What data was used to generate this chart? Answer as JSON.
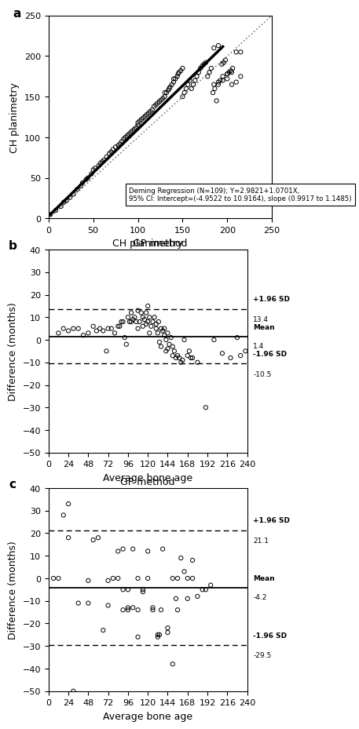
{
  "panel_a": {
    "xlabel": "GP method",
    "ylabel": "CH planimetry",
    "xlim": [
      0,
      250
    ],
    "ylim": [
      0,
      250
    ],
    "xticks": [
      0,
      50,
      100,
      150,
      200,
      250
    ],
    "yticks": [
      0,
      50,
      100,
      150,
      200,
      250
    ],
    "regression_intercept": 2.9821,
    "regression_slope": 1.0701,
    "annotation": "Deming Regression (N=109); Y=2.9821+1.0701X,\n95% CI: Intercept=(-4.9522 to 10.9164), slope (0.9917 to 1.1485)",
    "scatter_x": [
      2,
      8,
      14,
      17,
      20,
      24,
      28,
      32,
      36,
      38,
      42,
      44,
      48,
      50,
      52,
      56,
      58,
      60,
      62,
      65,
      68,
      70,
      72,
      75,
      78,
      80,
      82,
      84,
      86,
      88,
      90,
      92,
      94,
      96,
      98,
      100,
      100,
      102,
      104,
      106,
      108,
      110,
      112,
      114,
      116,
      118,
      120,
      122,
      124,
      126,
      128,
      130,
      130,
      132,
      134,
      135,
      136,
      138,
      140,
      140,
      142,
      144,
      145,
      146,
      148,
      150,
      150,
      152,
      154,
      156,
      158,
      160,
      162,
      164,
      166,
      168,
      170,
      172,
      174,
      176,
      178,
      180,
      182,
      184,
      186,
      188,
      190,
      192,
      194,
      196,
      198,
      200,
      202,
      204,
      206,
      185,
      190,
      195,
      200,
      205,
      210,
      215,
      185,
      190,
      195,
      200,
      205,
      210,
      215
    ],
    "scatter_y": [
      5,
      10,
      15,
      20,
      22,
      26,
      30,
      36,
      40,
      44,
      48,
      50,
      55,
      60,
      62,
      65,
      68,
      70,
      72,
      76,
      80,
      82,
      85,
      88,
      90,
      92,
      95,
      98,
      100,
      102,
      104,
      106,
      108,
      110,
      112,
      115,
      118,
      120,
      122,
      124,
      126,
      128,
      130,
      132,
      134,
      138,
      140,
      142,
      144,
      146,
      148,
      150,
      155,
      155,
      158,
      160,
      162,
      165,
      168,
      172,
      172,
      175,
      178,
      180,
      182,
      185,
      150,
      155,
      160,
      165,
      170,
      160,
      165,
      170,
      175,
      180,
      185,
      188,
      190,
      192,
      175,
      180,
      185,
      155,
      160,
      145,
      165,
      170,
      190,
      192,
      195,
      178,
      180,
      182,
      185,
      210,
      213,
      175,
      178,
      180,
      205,
      175,
      165,
      168,
      170,
      172,
      165,
      168,
      205
    ]
  },
  "panel_b": {
    "title": "CH planimetry",
    "xlabel": "Average bone age",
    "ylabel": "Difference (months)",
    "xlim": [
      0,
      240
    ],
    "ylim": [
      -50,
      40
    ],
    "xticks": [
      0,
      24,
      48,
      72,
      96,
      120,
      144,
      168,
      192,
      216,
      240
    ],
    "yticks": [
      -50,
      -40,
      -30,
      -20,
      -10,
      0,
      10,
      20,
      30,
      40
    ],
    "mean": 1.4,
    "upper_sd": 13.4,
    "lower_sd": -10.5,
    "scatter_x": [
      12,
      18,
      24,
      30,
      36,
      42,
      48,
      54,
      58,
      62,
      66,
      70,
      72,
      76,
      80,
      84,
      86,
      88,
      90,
      92,
      94,
      96,
      98,
      100,
      100,
      102,
      104,
      106,
      108,
      108,
      110,
      112,
      114,
      114,
      116,
      118,
      118,
      120,
      120,
      122,
      122,
      124,
      126,
      128,
      130,
      130,
      132,
      133,
      134,
      136,
      136,
      138,
      140,
      140,
      142,
      142,
      144,
      144,
      146,
      148,
      150,
      150,
      152,
      154,
      156,
      158,
      160,
      162,
      164,
      168,
      170,
      172,
      174,
      180,
      190,
      200,
      210,
      220,
      228,
      232,
      238
    ],
    "scatter_y": [
      3,
      5,
      4,
      5,
      5,
      2,
      3,
      6,
      4,
      5,
      4,
      -5,
      5,
      5,
      3,
      6,
      6,
      8,
      8,
      1,
      -2,
      10,
      8,
      8,
      12,
      9,
      10,
      8,
      13,
      5,
      8,
      12,
      10,
      6,
      9,
      7,
      12,
      15,
      8,
      10,
      3,
      6,
      8,
      10,
      5,
      7,
      3,
      8,
      -1,
      5,
      -3,
      4,
      5,
      2,
      0,
      -5,
      3,
      -4,
      -2,
      1,
      -3,
      -7,
      -5,
      -8,
      -7,
      -8,
      -10,
      -9,
      0,
      -7,
      -5,
      -8,
      -8,
      -10,
      -30,
      0,
      -6,
      -8,
      1,
      -7,
      -5
    ]
  },
  "panel_c": {
    "title": "GP method",
    "xlabel": "Average bone age",
    "ylabel": "Difference (months)",
    "xlim": [
      0,
      240
    ],
    "ylim": [
      -50,
      40
    ],
    "xticks": [
      0,
      24,
      48,
      72,
      96,
      120,
      144,
      168,
      192,
      216,
      240
    ],
    "yticks": [
      -50,
      -40,
      -30,
      -20,
      -10,
      0,
      10,
      20,
      30,
      40
    ],
    "mean": -4.2,
    "upper_sd": 21.1,
    "lower_sd": -29.5,
    "scatter_x": [
      6,
      12,
      18,
      24,
      24,
      30,
      36,
      48,
      48,
      54,
      60,
      66,
      72,
      72,
      78,
      84,
      84,
      90,
      90,
      90,
      96,
      96,
      96,
      102,
      102,
      108,
      108,
      108,
      114,
      114,
      120,
      120,
      126,
      126,
      132,
      132,
      134,
      136,
      138,
      144,
      144,
      150,
      150,
      154,
      156,
      156,
      160,
      164,
      168,
      168,
      174,
      174,
      180,
      186,
      190,
      196
    ],
    "scatter_y": [
      0,
      0,
      28,
      33,
      18,
      -50,
      -11,
      -11,
      -1,
      17,
      18,
      -23,
      -12,
      -1,
      0,
      0,
      12,
      13,
      -14,
      -5,
      -5,
      -13,
      -14,
      13,
      -13,
      -14,
      -26,
      0,
      -6,
      -5,
      12,
      0,
      -14,
      -13,
      -26,
      -25,
      -25,
      -14,
      13,
      -22,
      -24,
      -38,
      0,
      -9,
      0,
      -14,
      9,
      3,
      -9,
      0,
      0,
      8,
      -8,
      -5,
      -5,
      -3
    ]
  }
}
